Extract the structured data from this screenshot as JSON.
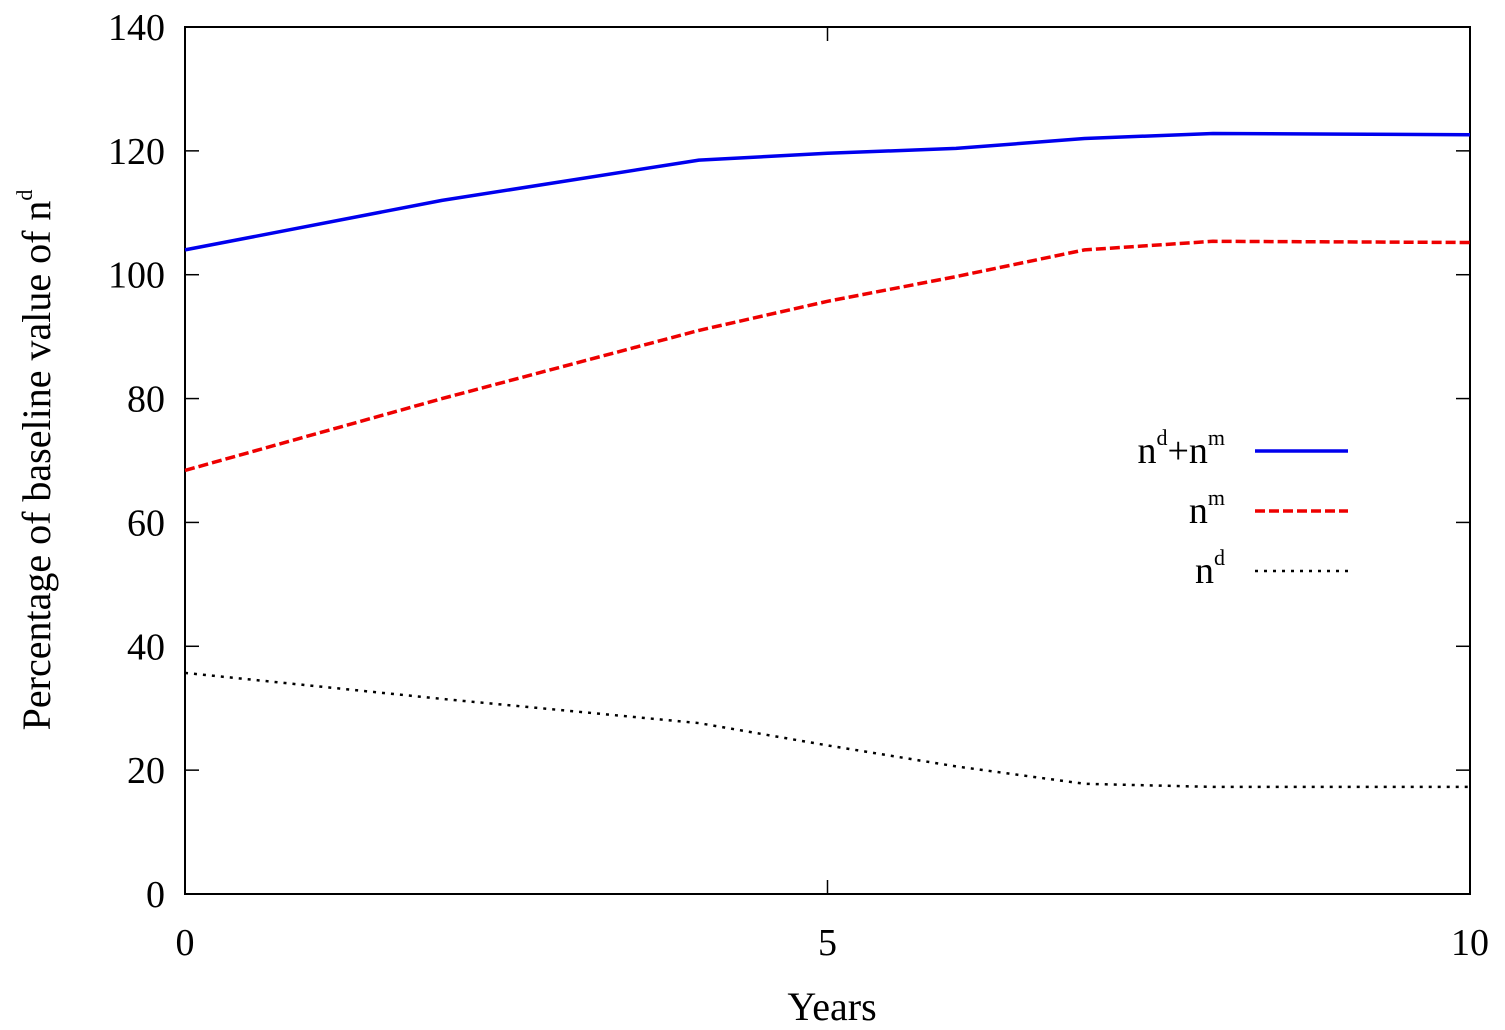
{
  "chart_data": {
    "type": "line",
    "title": "",
    "xlabel": "Years",
    "ylabel": {
      "base": "Percentage of baseline value of n",
      "sup": "d"
    },
    "xlim": [
      0,
      10
    ],
    "ylim": [
      0,
      140
    ],
    "x_ticks": [
      0,
      5,
      10
    ],
    "x_tick_labels": [
      "0",
      "5",
      "10"
    ],
    "y_ticks": [
      0,
      20,
      40,
      60,
      80,
      100,
      120,
      140
    ],
    "y_tick_labels": [
      "0",
      "20",
      "40",
      "60",
      "80",
      "100",
      "120",
      "140"
    ],
    "grid": false,
    "legend_placement": "right",
    "series": [
      {
        "name": "n^d+n^m",
        "legend_parts": [
          [
            "n",
            "d"
          ],
          [
            "+n",
            "m"
          ]
        ],
        "color": "#0000ee",
        "style": "solid",
        "x": [
          0,
          2,
          4,
          5,
          6,
          7,
          8,
          9,
          10
        ],
        "values": [
          104,
          112,
          118.5,
          119.6,
          120.4,
          122,
          122.8,
          122.7,
          122.6
        ]
      },
      {
        "name": "n^m",
        "legend_parts": [
          [
            "n",
            "m"
          ]
        ],
        "color": "#ee0000",
        "style": "dashed",
        "x": [
          0,
          2,
          4,
          5,
          6,
          7,
          8,
          9,
          10
        ],
        "values": [
          68.4,
          80,
          91,
          95.7,
          99.7,
          104,
          105.4,
          105.3,
          105.2
        ]
      },
      {
        "name": "n^d",
        "legend_parts": [
          [
            "n",
            "d"
          ]
        ],
        "color": "#000000",
        "style": "dotted",
        "x": [
          0,
          2,
          4,
          5,
          6,
          7,
          8,
          9,
          10
        ],
        "values": [
          35.7,
          31.5,
          27.6,
          24,
          20.6,
          17.8,
          17.3,
          17.3,
          17.3
        ]
      }
    ]
  }
}
